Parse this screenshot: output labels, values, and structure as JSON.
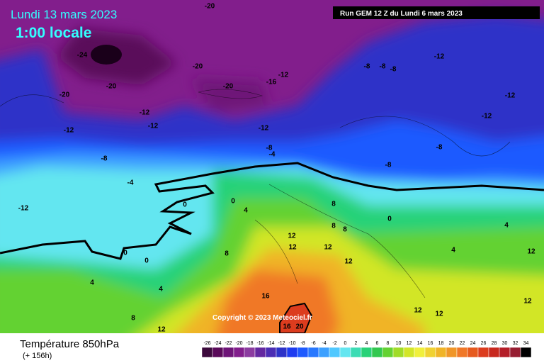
{
  "header": {
    "date": "Lundi 13 mars 2023",
    "time": "1:00 locale",
    "run": "Run GEM 12 Z du Lundi 6 mars 2023"
  },
  "map": {
    "labels": [
      -20,
      -24,
      -20,
      -20,
      -20,
      -20,
      -16,
      -12,
      -12,
      -12,
      -12,
      -12,
      -12,
      -8,
      -8,
      -8,
      -12,
      -12,
      -8,
      -8,
      -4,
      -4,
      -8,
      -8,
      -12,
      0,
      0,
      4,
      0,
      0,
      8,
      8,
      8,
      8,
      0,
      12,
      12,
      12,
      12,
      4,
      4,
      12,
      16,
      12,
      12,
      8,
      12,
      4,
      4,
      16,
      20,
      12
    ]
  },
  "copyright": "Copyright © 2023 Meteociel.fr",
  "footer": {
    "title": "Température 850hPa",
    "lead": "(+ 156h)"
  },
  "legend": {
    "scale": [
      {
        "value": -26,
        "color": "#3c0a3c"
      },
      {
        "value": -24,
        "color": "#5a0a5a"
      },
      {
        "value": -22,
        "color": "#6e1478"
      },
      {
        "value": -20,
        "color": "#821e8c"
      },
      {
        "value": -18,
        "color": "#8c3ca0"
      },
      {
        "value": -16,
        "color": "#6428a0"
      },
      {
        "value": -14,
        "color": "#4b2db4"
      },
      {
        "value": -12,
        "color": "#2d32c8"
      },
      {
        "value": -10,
        "color": "#1e3cf0"
      },
      {
        "value": -8,
        "color": "#1e5aff"
      },
      {
        "value": -6,
        "color": "#2878ff"
      },
      {
        "value": -4,
        "color": "#3ca0ff"
      },
      {
        "value": -2,
        "color": "#50c8ff"
      },
      {
        "value": 0,
        "color": "#64e6f0"
      },
      {
        "value": 2,
        "color": "#3cdcb4"
      },
      {
        "value": 4,
        "color": "#28d278"
      },
      {
        "value": 6,
        "color": "#32c850"
      },
      {
        "value": 8,
        "color": "#64d232"
      },
      {
        "value": 10,
        "color": "#a0dc28"
      },
      {
        "value": 12,
        "color": "#d2e628"
      },
      {
        "value": 14,
        "color": "#f0f03c"
      },
      {
        "value": 16,
        "color": "#f0d232"
      },
      {
        "value": 18,
        "color": "#f0b428"
      },
      {
        "value": 20,
        "color": "#f09628"
      },
      {
        "value": 22,
        "color": "#f07828"
      },
      {
        "value": 24,
        "color": "#e65a1e"
      },
      {
        "value": 26,
        "color": "#dc3c1e"
      },
      {
        "value": 28,
        "color": "#c8281e"
      },
      {
        "value": 30,
        "color": "#b41e28"
      },
      {
        "value": 32,
        "color": "#961e32"
      },
      {
        "value": 34,
        "color": "#000000"
      }
    ]
  }
}
